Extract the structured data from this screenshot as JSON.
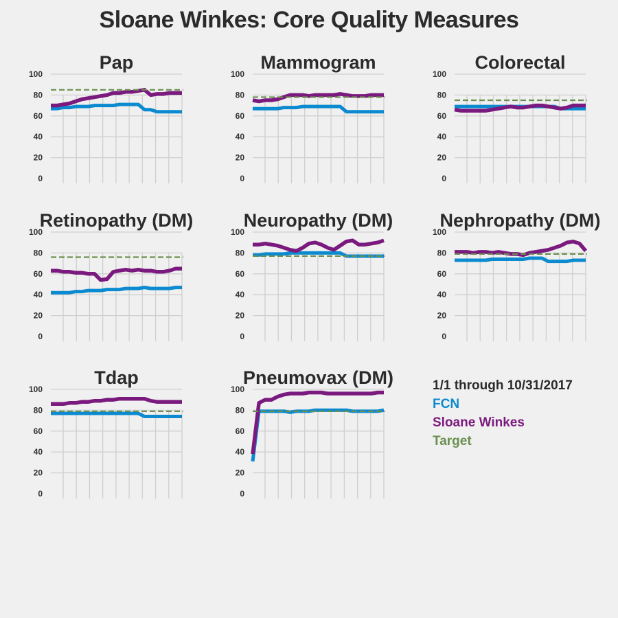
{
  "title": "Sloane Winkes: Core Quality Measures",
  "legend": {
    "period": "1/1 through 10/31/2017",
    "items": [
      {
        "label": "FCN",
        "color": "#0c8ad0"
      },
      {
        "label": "Sloane Winkes",
        "color": "#7b1a7e"
      },
      {
        "label": "Target",
        "color": "#6a8f4e"
      }
    ]
  },
  "chart_data": [
    {
      "type": "line",
      "title": "Pap",
      "ylim": [
        0,
        100
      ],
      "yticks": [
        0,
        20,
        40,
        60,
        80,
        100
      ],
      "target": 85,
      "series": [
        {
          "name": "FCN",
          "color": "#0c8ad0",
          "values": [
            67,
            67,
            68,
            68,
            69,
            69,
            69,
            70,
            70,
            70,
            70,
            71,
            71,
            71,
            71,
            66,
            66,
            64,
            64,
            64,
            64,
            64
          ]
        },
        {
          "name": "Sloane Winkes",
          "color": "#7b1a7e",
          "values": [
            70,
            70,
            71,
            72,
            74,
            76,
            77,
            78,
            79,
            80,
            82,
            82,
            83,
            83,
            84,
            85,
            80,
            81,
            81,
            82,
            82,
            82
          ]
        }
      ]
    },
    {
      "type": "line",
      "title": "Mammogram",
      "ylim": [
        0,
        100
      ],
      "yticks": [
        0,
        20,
        40,
        60,
        80,
        100
      ],
      "target": 78,
      "series": [
        {
          "name": "FCN",
          "color": "#0c8ad0",
          "values": [
            67,
            67,
            67,
            67,
            67,
            68,
            68,
            68,
            69,
            69,
            69,
            69,
            69,
            69,
            69,
            64,
            64,
            64,
            64,
            64,
            64,
            64
          ]
        },
        {
          "name": "Sloane Winkes",
          "color": "#7b1a7e",
          "values": [
            75,
            74,
            75,
            75,
            76,
            78,
            80,
            80,
            80,
            79,
            80,
            80,
            80,
            80,
            81,
            80,
            79,
            79,
            79,
            80,
            80,
            80
          ]
        }
      ]
    },
    {
      "type": "line",
      "title": "Colorectal",
      "ylim": [
        0,
        100
      ],
      "yticks": [
        0,
        20,
        40,
        60,
        80,
        100
      ],
      "target": 75,
      "series": [
        {
          "name": "FCN",
          "color": "#0c8ad0",
          "values": [
            69,
            69,
            69,
            69,
            69,
            69,
            69,
            69,
            69,
            69,
            69,
            69,
            69,
            69,
            69,
            69,
            69,
            67,
            67,
            67,
            67,
            67
          ]
        },
        {
          "name": "Sloane Winkes",
          "color": "#7b1a7e",
          "values": [
            66,
            65,
            65,
            65,
            65,
            65,
            66,
            67,
            68,
            69,
            68,
            68,
            69,
            70,
            70,
            69,
            68,
            67,
            68,
            70,
            70,
            70
          ]
        }
      ]
    },
    {
      "type": "line",
      "title": "Retinopathy (DM)",
      "ylim": [
        0,
        100
      ],
      "yticks": [
        0,
        20,
        40,
        60,
        80,
        100
      ],
      "target": 76,
      "series": [
        {
          "name": "FCN",
          "color": "#0c8ad0",
          "values": [
            42,
            42,
            42,
            42,
            43,
            43,
            44,
            44,
            44,
            45,
            45,
            45,
            46,
            46,
            46,
            47,
            46,
            46,
            46,
            46,
            47,
            47
          ]
        },
        {
          "name": "Sloane Winkes",
          "color": "#7b1a7e",
          "values": [
            63,
            63,
            62,
            62,
            61,
            61,
            60,
            60,
            54,
            55,
            62,
            63,
            64,
            63,
            64,
            63,
            63,
            62,
            62,
            63,
            65,
            65
          ]
        }
      ]
    },
    {
      "type": "line",
      "title": "Neuropathy (DM)",
      "ylim": [
        0,
        100
      ],
      "yticks": [
        0,
        20,
        40,
        60,
        80,
        100
      ],
      "target": 77,
      "series": [
        {
          "name": "FCN",
          "color": "#0c8ad0",
          "values": [
            78,
            78,
            79,
            79,
            79,
            79,
            80,
            80,
            80,
            80,
            80,
            80,
            80,
            80,
            80,
            77,
            77,
            77,
            77,
            77,
            77,
            77
          ]
        },
        {
          "name": "Sloane Winkes",
          "color": "#7b1a7e",
          "values": [
            88,
            88,
            89,
            88,
            87,
            85,
            83,
            82,
            85,
            89,
            90,
            88,
            85,
            83,
            87,
            91,
            92,
            88,
            88,
            89,
            90,
            92
          ]
        }
      ]
    },
    {
      "type": "line",
      "title": "Nephropathy (DM)",
      "ylim": [
        0,
        100
      ],
      "yticks": [
        0,
        20,
        40,
        60,
        80,
        100
      ],
      "target": 79,
      "series": [
        {
          "name": "FCN",
          "color": "#0c8ad0",
          "values": [
            73,
            73,
            73,
            73,
            73,
            73,
            74,
            74,
            74,
            74,
            74,
            74,
            75,
            75,
            75,
            72,
            72,
            72,
            72,
            73,
            73,
            73
          ]
        },
        {
          "name": "Sloane Winkes",
          "color": "#7b1a7e",
          "values": [
            81,
            81,
            81,
            80,
            81,
            81,
            80,
            81,
            80,
            79,
            79,
            78,
            80,
            81,
            82,
            83,
            85,
            87,
            90,
            91,
            89,
            82
          ]
        }
      ]
    },
    {
      "type": "line",
      "title": "Tdap",
      "ylim": [
        0,
        100
      ],
      "yticks": [
        0,
        20,
        40,
        60,
        80,
        100
      ],
      "target": 79,
      "series": [
        {
          "name": "FCN",
          "color": "#0c8ad0",
          "values": [
            77,
            77,
            77,
            77,
            77,
            77,
            77,
            77,
            77,
            77,
            77,
            77,
            77,
            77,
            77,
            74,
            74,
            74,
            74,
            74,
            74,
            74
          ]
        },
        {
          "name": "Sloane Winkes",
          "color": "#7b1a7e",
          "values": [
            86,
            86,
            86,
            87,
            87,
            88,
            88,
            89,
            89,
            90,
            90,
            91,
            91,
            91,
            91,
            91,
            89,
            88,
            88,
            88,
            88,
            88
          ]
        }
      ]
    },
    {
      "type": "line",
      "title": "Pneumovax (DM)",
      "ylim": [
        0,
        100
      ],
      "yticks": [
        0,
        20,
        40,
        60,
        80,
        100
      ],
      "target": 79,
      "series": [
        {
          "name": "FCN",
          "color": "#0c8ad0",
          "values": [
            31,
            79,
            79,
            79,
            79,
            79,
            78,
            79,
            79,
            79,
            80,
            80,
            80,
            80,
            80,
            80,
            79,
            79,
            79,
            79,
            79,
            80
          ]
        },
        {
          "name": "Sloane Winkes",
          "color": "#7b1a7e",
          "values": [
            38,
            87,
            90,
            90,
            93,
            95,
            96,
            96,
            96,
            97,
            97,
            97,
            96,
            96,
            96,
            96,
            96,
            96,
            96,
            96,
            97,
            97
          ]
        }
      ]
    }
  ]
}
